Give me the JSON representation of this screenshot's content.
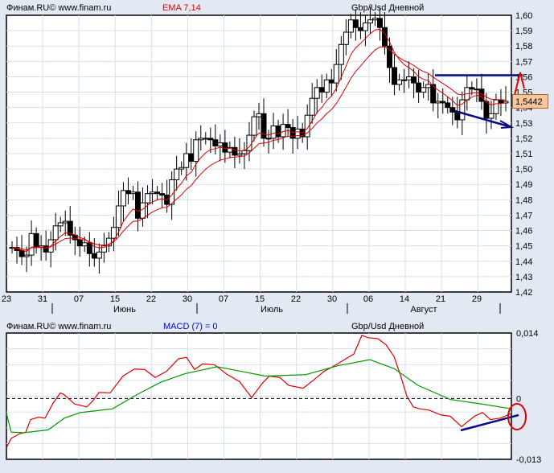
{
  "header_top": {
    "brand": "Финам.RU©  www.finam.ru",
    "indicator": "EMA 7,14",
    "title": "Gbp/Usd Дневной"
  },
  "header_bottom": {
    "brand": "Финам.RU©  www.finam.ru",
    "indicator": "MACD (7) = 0",
    "title": "Gbp/Usd Дневной"
  },
  "colors": {
    "bg": "#e3e9f3",
    "grid": "#d6dff0",
    "ema": "#e00000",
    "macd": "#e00000",
    "signal": "#009900",
    "annot": "#0a0a80",
    "price_tag": "#f9c79a",
    "indicator_top": "#e00000",
    "indicator_bottom": "#0000e0"
  },
  "current_price": "1,5442",
  "chart_data": [
    {
      "type": "candlestick",
      "title": "Gbp/Usd Дневной",
      "indicators": [
        "EMA 7",
        "EMA 14"
      ],
      "ylim": [
        1.42,
        1.6
      ],
      "y_ticks": [
        "1,60",
        "1,59",
        "1,58",
        "1,57",
        "1,56",
        "1,55",
        "1,54",
        "1,53",
        "1,52",
        "1,51",
        "1,50",
        "1,49",
        "1,48",
        "1,47",
        "1,46",
        "1,45",
        "1,44",
        "1,43",
        "1,42"
      ],
      "x_ticks": [
        "23",
        "31",
        "07",
        "15",
        "22",
        "30",
        "07",
        "15",
        "22",
        "30",
        "06",
        "14",
        "21",
        "29"
      ],
      "months": [
        "Июнь",
        "Июль",
        "Август"
      ],
      "last_price": 1.5442,
      "annotations": [
        "horizontal resistance line at 1.561 with upward red arrow",
        "descending support line to ~1.527 with arrow"
      ]
    },
    {
      "type": "line",
      "title": "MACD (7) = 0",
      "ylim": [
        -0.013,
        0.014
      ],
      "y_ticks": [
        "0,014",
        "0",
        "-0,013"
      ],
      "series": [
        {
          "name": "MACD",
          "color": "red"
        },
        {
          "name": "Signal",
          "color": "green"
        }
      ],
      "annotations": [
        "rising blue trendline at end",
        "red circle at zero crossing"
      ]
    }
  ]
}
